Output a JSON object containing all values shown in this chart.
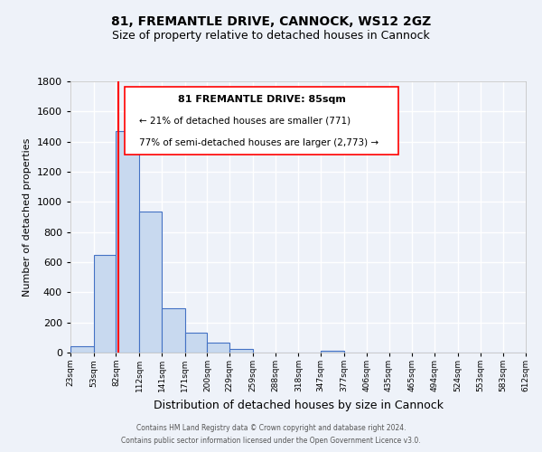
{
  "title1": "81, FREMANTLE DRIVE, CANNOCK, WS12 2GZ",
  "title2": "Size of property relative to detached houses in Cannock",
  "xlabel": "Distribution of detached houses by size in Cannock",
  "ylabel": "Number of detached properties",
  "bin_edges": [
    23,
    53,
    82,
    112,
    141,
    171,
    200,
    229,
    259,
    288,
    318,
    347,
    377,
    406,
    435,
    465,
    494,
    524,
    553,
    583,
    612
  ],
  "bin_labels": [
    "23sqm",
    "53sqm",
    "82sqm",
    "112sqm",
    "141sqm",
    "171sqm",
    "200sqm",
    "229sqm",
    "259sqm",
    "288sqm",
    "318sqm",
    "347sqm",
    "377sqm",
    "406sqm",
    "435sqm",
    "465sqm",
    "494sqm",
    "524sqm",
    "553sqm",
    "583sqm",
    "612sqm"
  ],
  "counts": [
    40,
    650,
    1470,
    935,
    295,
    130,
    65,
    22,
    0,
    0,
    0,
    15,
    0,
    0,
    0,
    0,
    0,
    0,
    0,
    0
  ],
  "bar_color": "#c8d9ef",
  "bar_edge_color": "#4472c4",
  "red_line_x": 85,
  "ylim": [
    0,
    1800
  ],
  "yticks": [
    0,
    200,
    400,
    600,
    800,
    1000,
    1200,
    1400,
    1600,
    1800
  ],
  "annotation_title": "81 FREMANTLE DRIVE: 85sqm",
  "annotation_line1": "← 21% of detached houses are smaller (771)",
  "annotation_line2": "77% of semi-detached houses are larger (2,773) →",
  "footer1": "Contains HM Land Registry data © Crown copyright and database right 2024.",
  "footer2": "Contains public sector information licensed under the Open Government Licence v3.0.",
  "background_color": "#eef2f9",
  "grid_color": "#ffffff",
  "title_fontsize": 10,
  "subtitle_fontsize": 9,
  "ylabel_fontsize": 8,
  "xlabel_fontsize": 9,
  "tick_fontsize": 6.5,
  "ytick_fontsize": 8
}
